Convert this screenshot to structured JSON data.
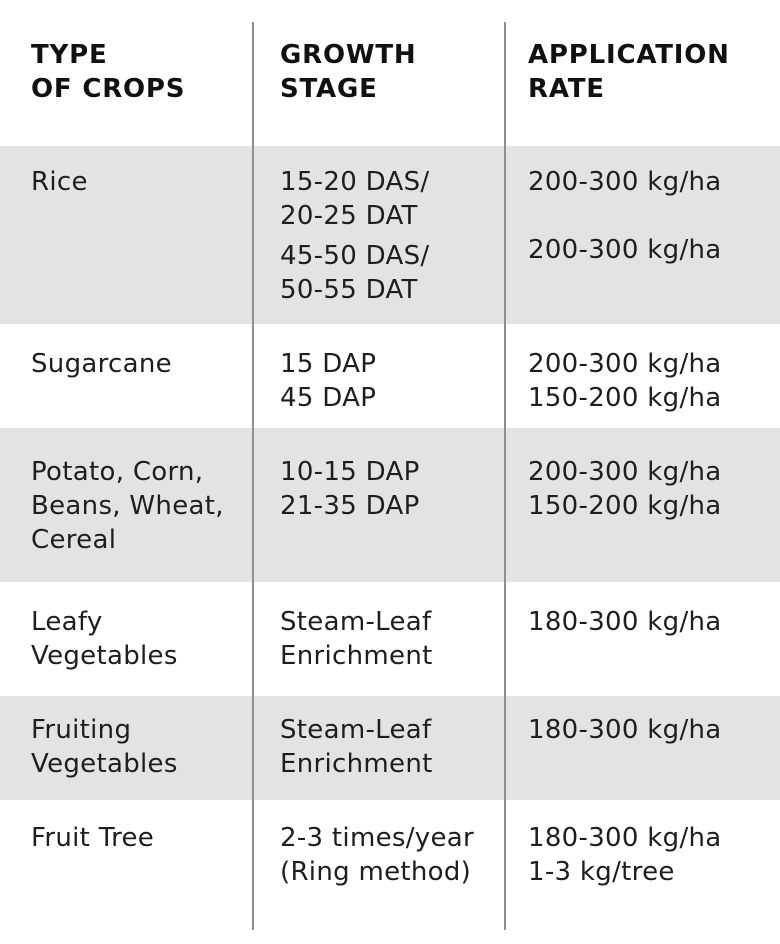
{
  "header": {
    "col1": [
      "TYPE",
      "OF CROPS"
    ],
    "col2": [
      "GROWTH",
      "STAGE"
    ],
    "col3": [
      "APPLICATION",
      "RATE"
    ]
  },
  "rows": [
    {
      "crop": [
        "Rice"
      ],
      "stage": [
        "15-20 DAS/",
        "20-25 DAT",
        "45-50 DAS/",
        "50-55 DAT"
      ],
      "rate": [
        "200-300 kg/ha",
        "200-300 kg/ha"
      ]
    },
    {
      "crop": [
        "Sugarcane"
      ],
      "stage": [
        "15 DAP",
        "45 DAP"
      ],
      "rate": [
        "200-300 kg/ha",
        "150-200 kg/ha"
      ]
    },
    {
      "crop": [
        "Potato, Corn,",
        "Beans, Wheat,",
        "Cereal"
      ],
      "stage": [
        "10-15 DAP",
        "21-35 DAP"
      ],
      "rate": [
        "200-300 kg/ha",
        "150-200 kg/ha"
      ]
    },
    {
      "crop": [
        "Leafy",
        "Vegetables"
      ],
      "stage": [
        "Steam-Leaf",
        "Enrichment"
      ],
      "rate": [
        "180-300 kg/ha"
      ]
    },
    {
      "crop": [
        "Fruiting",
        "Vegetables"
      ],
      "stage": [
        "Steam-Leaf",
        "Enrichment"
      ],
      "rate": [
        "180-300 kg/ha"
      ]
    },
    {
      "crop": [
        "Fruit Tree"
      ],
      "stage": [
        "2-3 times/year",
        "(Ring method)"
      ],
      "rate": [
        "180-300 kg/ha",
        "1-3 kg/tree"
      ]
    }
  ]
}
